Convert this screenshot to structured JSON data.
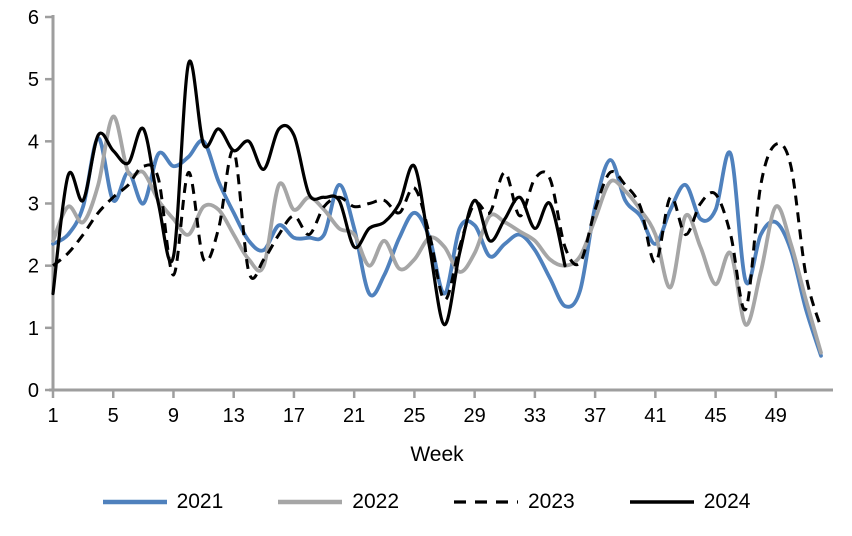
{
  "chart_data": {
    "type": "line",
    "title": "",
    "xlabel": "Week",
    "ylabel": "",
    "xlim": [
      1,
      52
    ],
    "ylim": [
      0,
      6
    ],
    "grid": false,
    "legend_position": "bottom",
    "axis_color": "#9e9e9e",
    "x_ticks": [
      1,
      5,
      9,
      13,
      17,
      21,
      25,
      29,
      33,
      37,
      41,
      45,
      49
    ],
    "y_ticks": [
      0,
      1,
      2,
      3,
      4,
      5,
      6
    ],
    "series": [
      {
        "name": "2021",
        "color": "#4F81BD",
        "style": "solid",
        "start_week": 1,
        "values": [
          2.35,
          2.5,
          2.95,
          4.05,
          3.05,
          3.5,
          3.0,
          3.8,
          3.6,
          3.75,
          4.0,
          3.35,
          2.85,
          2.4,
          2.25,
          2.65,
          2.45,
          2.45,
          2.5,
          3.3,
          2.6,
          1.55,
          1.85,
          2.45,
          2.85,
          2.45,
          1.55,
          2.6,
          2.65,
          2.15,
          2.35,
          2.5,
          2.25,
          1.8,
          1.35,
          1.6,
          2.95,
          3.7,
          3.05,
          2.8,
          2.35,
          2.9,
          3.3,
          2.75,
          2.9,
          3.8,
          1.75,
          2.5,
          2.7,
          2.25,
          1.3,
          0.55
        ]
      },
      {
        "name": "2022",
        "color": "#A6A6A6",
        "style": "solid",
        "start_week": 1,
        "values": [
          2.4,
          2.95,
          2.7,
          3.3,
          4.4,
          3.5,
          3.5,
          3.05,
          2.75,
          2.5,
          2.95,
          2.9,
          2.5,
          2.1,
          2.0,
          3.3,
          2.9,
          3.1,
          2.9,
          2.6,
          2.5,
          2.0,
          2.4,
          1.95,
          2.1,
          2.45,
          2.3,
          1.9,
          2.2,
          2.8,
          2.7,
          2.55,
          2.4,
          2.1,
          2.0,
          2.15,
          2.75,
          3.35,
          3.2,
          2.9,
          2.5,
          1.65,
          2.8,
          2.3,
          1.7,
          2.2,
          1.05,
          1.9,
          2.95,
          2.35,
          1.45,
          0.6
        ]
      },
      {
        "name": "2023",
        "color": "#000000",
        "style": "dashed",
        "start_week": 1,
        "values": [
          2.0,
          2.2,
          2.5,
          2.85,
          3.1,
          3.3,
          3.6,
          3.4,
          1.85,
          3.5,
          2.1,
          2.6,
          3.85,
          1.9,
          2.1,
          2.5,
          2.8,
          2.5,
          2.95,
          3.1,
          2.95,
          3.0,
          3.05,
          2.85,
          3.25,
          2.5,
          1.45,
          2.3,
          3.0,
          2.85,
          3.5,
          2.8,
          3.4,
          3.4,
          2.3,
          2.05,
          2.9,
          3.5,
          3.3,
          2.95,
          2.05,
          3.1,
          2.5,
          3.0,
          3.15,
          2.5,
          1.3,
          3.3,
          3.95,
          3.6,
          1.85,
          1.0
        ]
      },
      {
        "name": "2024",
        "color": "#000000",
        "style": "solid",
        "start_week": 1,
        "values": [
          1.55,
          3.45,
          3.05,
          4.1,
          3.85,
          3.65,
          4.2,
          3.0,
          2.15,
          5.25,
          3.95,
          4.2,
          3.85,
          4.0,
          3.55,
          4.2,
          4.1,
          3.15,
          3.1,
          3.05,
          2.3,
          2.6,
          2.7,
          3.0,
          3.6,
          2.3,
          1.05,
          2.2,
          3.05,
          2.4,
          2.75,
          3.1,
          2.6,
          3.0,
          2.0
        ]
      }
    ]
  }
}
